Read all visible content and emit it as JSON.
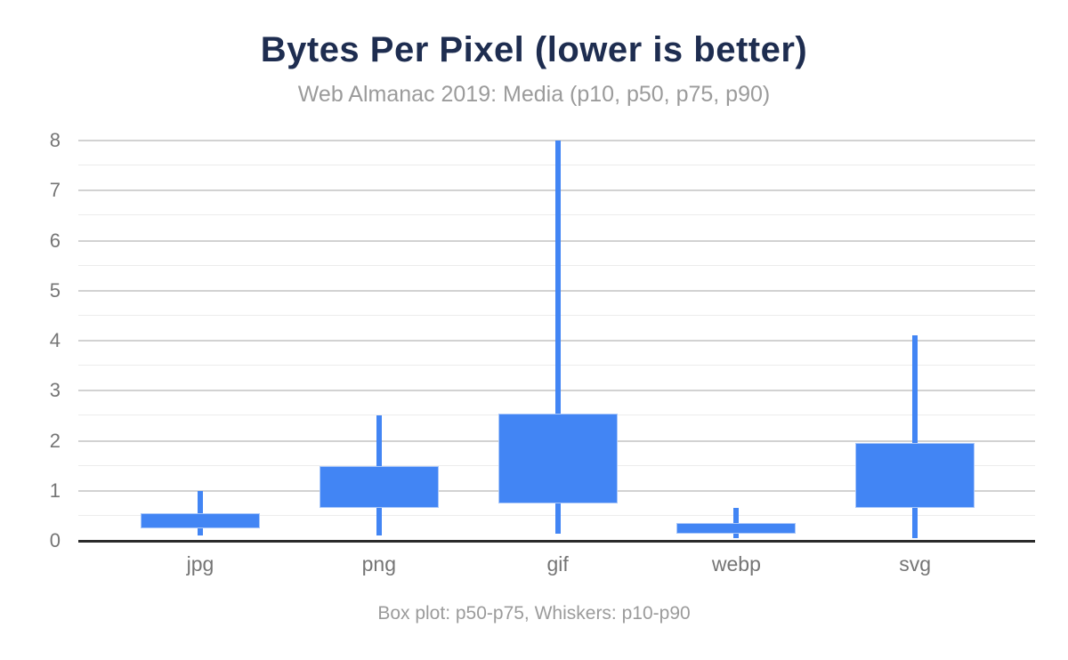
{
  "header": {
    "title": "Bytes Per Pixel (lower is better)",
    "subtitle": "Web Almanac 2019: Media (p10, p50, p75, p90)"
  },
  "footer": {
    "caption": "Box plot: p50-p75, Whiskers: p10-p90"
  },
  "colors": {
    "box_fill": "#4285f4",
    "box_stroke": "#a9c7f9",
    "title": "#1e2d50",
    "subtitle": "#9b9b9b",
    "axis_label": "#757575",
    "gridline_major": "#d2d2d2",
    "gridline_minor": "#ececec",
    "axis_line": "#2b2b2b",
    "background": "#ffffff"
  },
  "chart_data": {
    "type": "boxplot",
    "title": "Bytes Per Pixel (lower is better)",
    "subtitle": "Web Almanac 2019: Media (p10, p50, p75, p90)",
    "caption": "Box plot: p50-p75, Whiskers: p10-p90",
    "xlabel": "",
    "ylabel": "",
    "ylim": [
      0,
      8
    ],
    "yticks": [
      0,
      1,
      2,
      3,
      4,
      5,
      6,
      7,
      8
    ],
    "grid_minor_step": 0.5,
    "grid": true,
    "legend": "none",
    "box_spans": "p50-p75",
    "whisker_spans": "p10-p90",
    "categories": [
      "jpg",
      "png",
      "gif",
      "webp",
      "svg"
    ],
    "series": [
      {
        "name": "jpg",
        "p10": 0.1,
        "p50": 0.25,
        "p75": 0.55,
        "p90": 1.0
      },
      {
        "name": "png",
        "p10": 0.1,
        "p50": 0.65,
        "p75": 1.5,
        "p90": 2.5
      },
      {
        "name": "gif",
        "p10": 0.15,
        "p50": 0.75,
        "p75": 2.55,
        "p90": 8.0
      },
      {
        "name": "webp",
        "p10": 0.05,
        "p50": 0.15,
        "p75": 0.35,
        "p90": 0.65
      },
      {
        "name": "svg",
        "p10": 0.05,
        "p50": 0.65,
        "p75": 1.95,
        "p90": 4.1
      }
    ]
  }
}
